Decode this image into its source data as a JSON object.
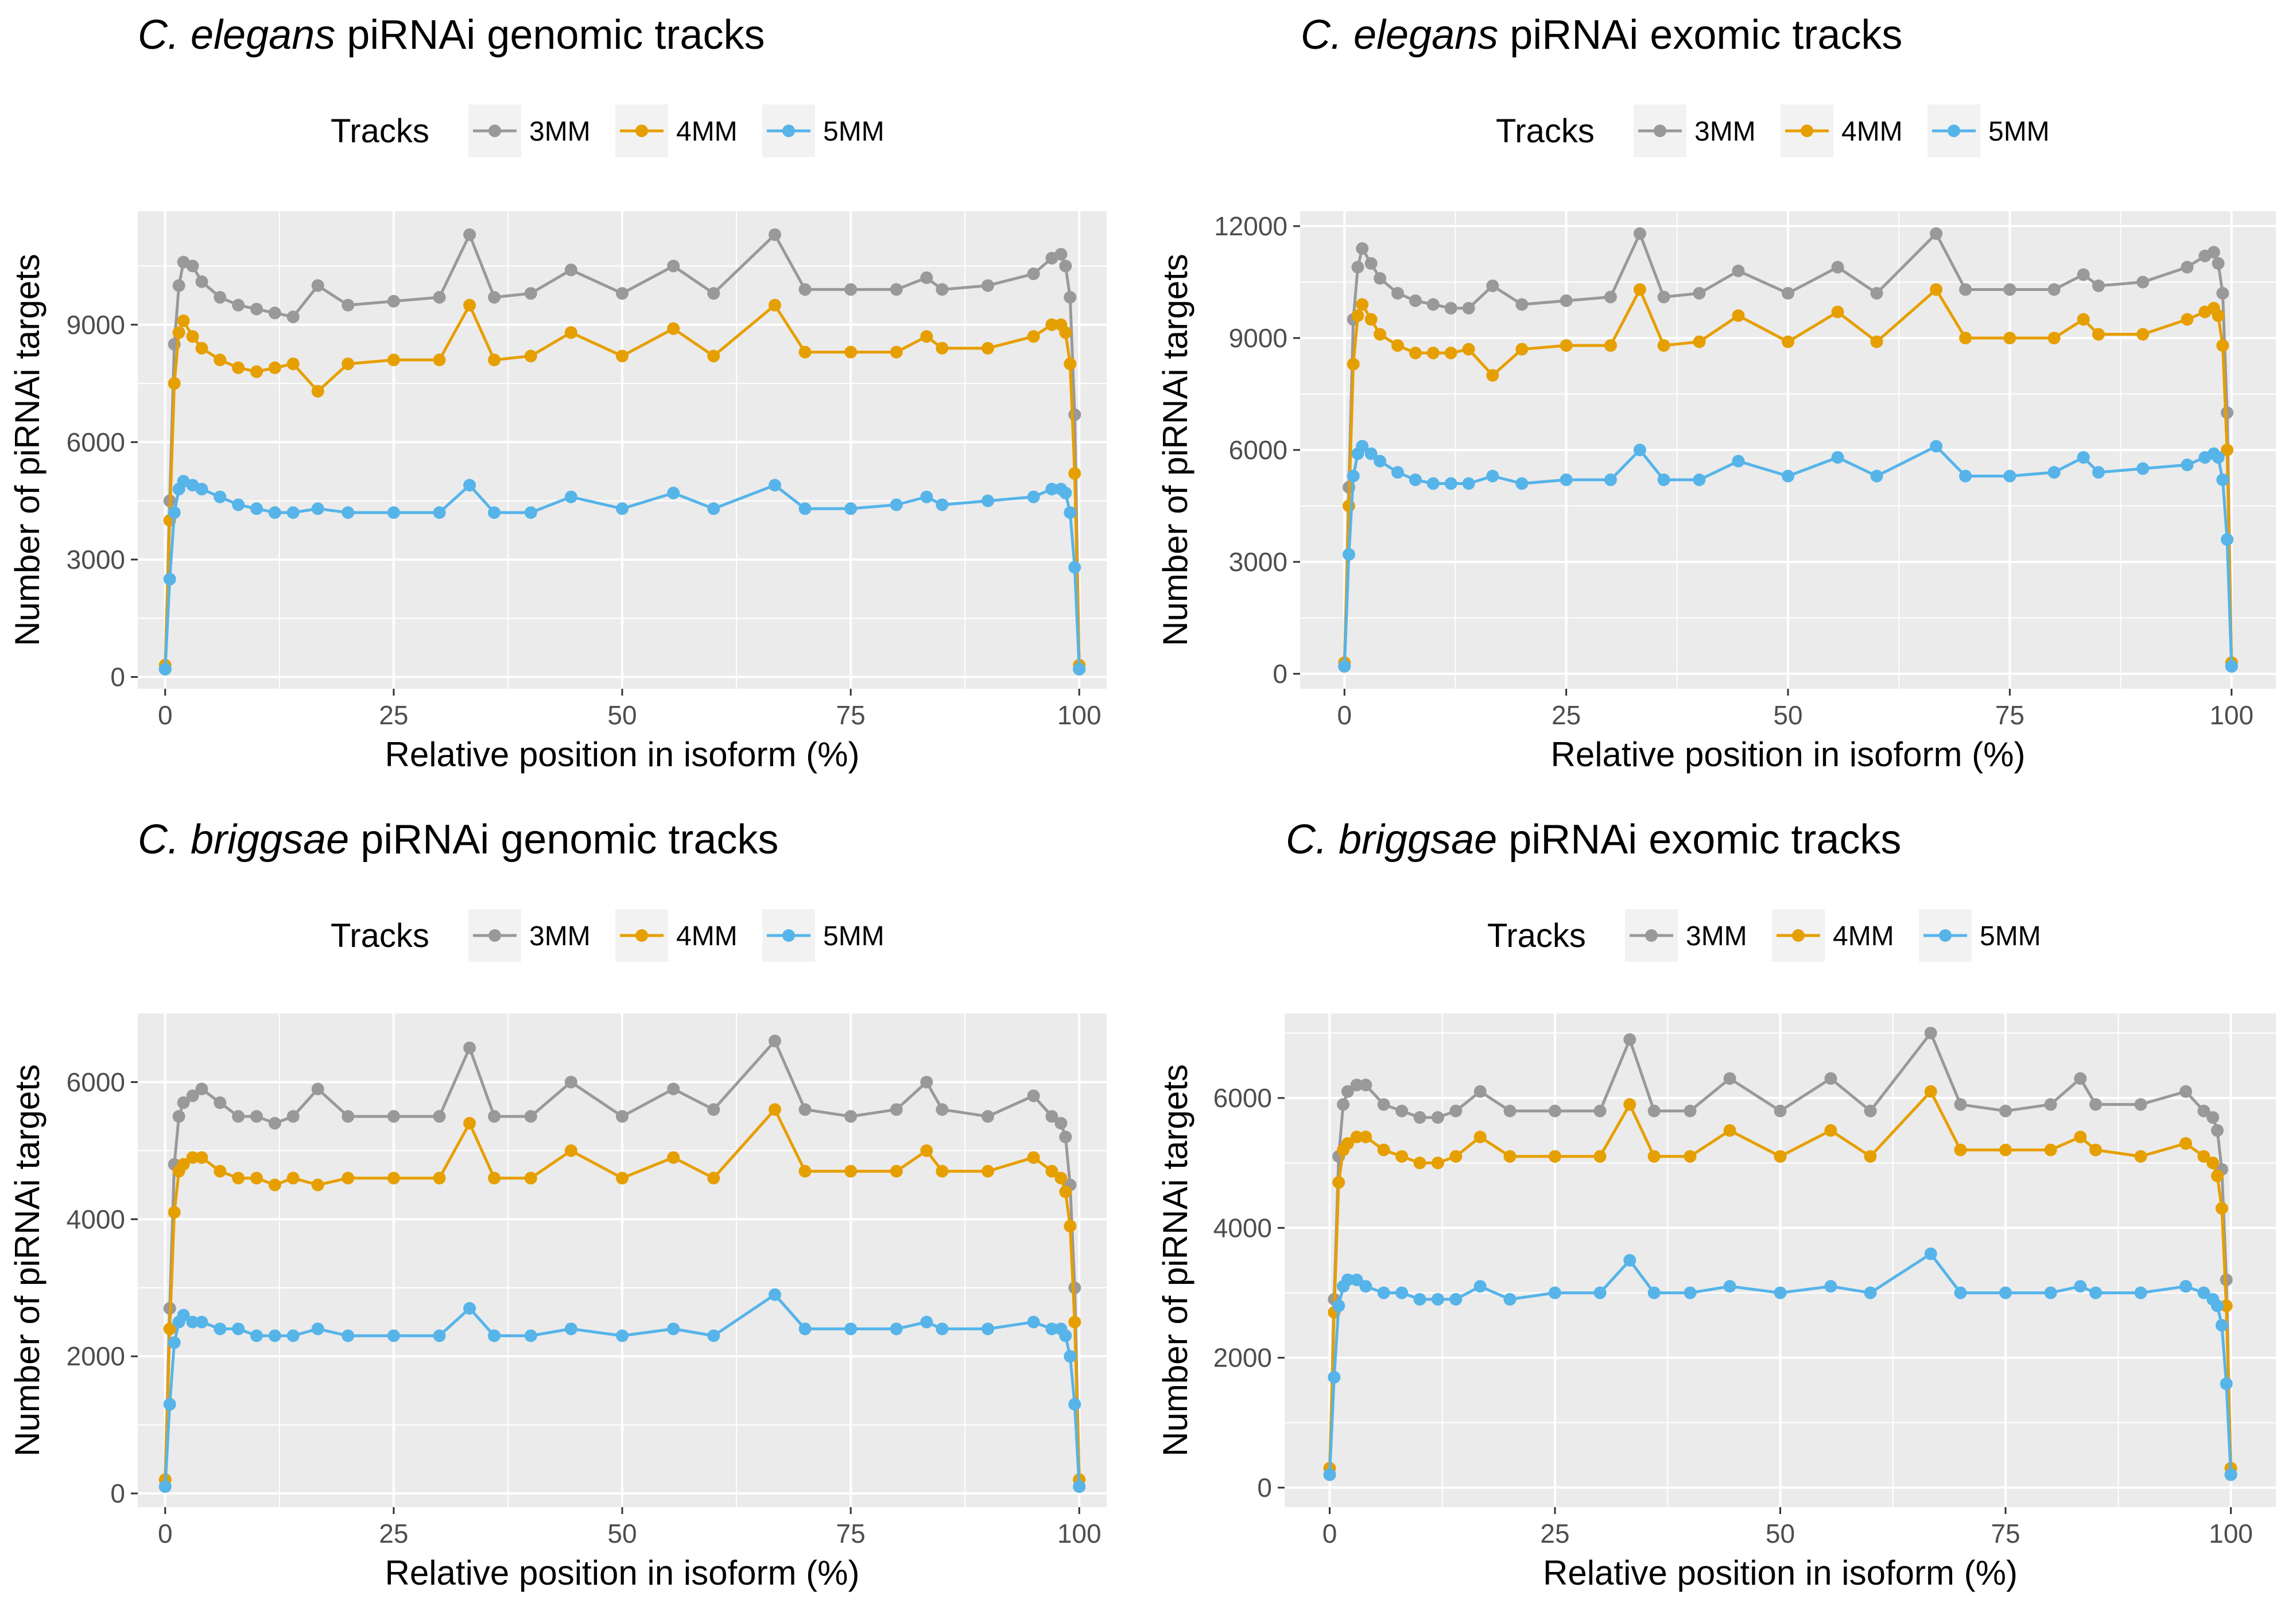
{
  "chart_data": [
    {
      "type": "line",
      "title_species": "C. elegans",
      "title_rest": "piRNAi genomic tracks",
      "legend_title": "Tracks",
      "legend_position": "top",
      "xlabel": "Relative position in isoform (%)",
      "ylabel": "Number of piRNAi targets",
      "xlim": [
        -3,
        103
      ],
      "ylim": [
        -300,
        11900
      ],
      "xticks": [
        0,
        25,
        50,
        75,
        100
      ],
      "yticks": [
        0,
        3000,
        6000,
        9000
      ],
      "ytick_labels": [
        "0",
        "3000",
        "6000",
        "9000"
      ],
      "grid": true,
      "series": [
        {
          "name": "3MM",
          "color": "#999999",
          "x": [
            0,
            0.5,
            1,
            1.5,
            2,
            3,
            4,
            6,
            8,
            10,
            12,
            14,
            16.7,
            20,
            25,
            30,
            33.3,
            36,
            40,
            44.4,
            50,
            55.6,
            60,
            66.7,
            70,
            75,
            80,
            83.3,
            85,
            90,
            95,
            97,
            98,
            98.5,
            99,
            99.5,
            100
          ],
          "y": [
            200,
            4500,
            8500,
            10000,
            10600,
            10500,
            10100,
            9700,
            9500,
            9400,
            9300,
            9200,
            10000,
            9500,
            9600,
            9700,
            11300,
            9700,
            9800,
            10400,
            9800,
            10500,
            9800,
            11300,
            9900,
            9900,
            9900,
            10200,
            9900,
            10000,
            10300,
            10700,
            10800,
            10500,
            9700,
            6700,
            200
          ]
        },
        {
          "name": "4MM",
          "color": "#E69F00",
          "x": [
            0,
            0.5,
            1,
            1.5,
            2,
            3,
            4,
            6,
            8,
            10,
            12,
            14,
            16.7,
            20,
            25,
            30,
            33.3,
            36,
            40,
            44.4,
            50,
            55.6,
            60,
            66.7,
            70,
            75,
            80,
            83.3,
            85,
            90,
            95,
            97,
            98,
            98.5,
            99,
            99.5,
            100
          ],
          "y": [
            300,
            4000,
            7500,
            8800,
            9100,
            8700,
            8400,
            8100,
            7900,
            7800,
            7900,
            8000,
            7300,
            8000,
            8100,
            8100,
            9500,
            8100,
            8200,
            8800,
            8200,
            8900,
            8200,
            9500,
            8300,
            8300,
            8300,
            8700,
            8400,
            8400,
            8700,
            9000,
            9000,
            8800,
            8000,
            5200,
            300
          ]
        },
        {
          "name": "5MM",
          "color": "#56B4E9",
          "x": [
            0,
            0.5,
            1,
            1.5,
            2,
            3,
            4,
            6,
            8,
            10,
            12,
            14,
            16.7,
            20,
            25,
            30,
            33.3,
            36,
            40,
            44.4,
            50,
            55.6,
            60,
            66.7,
            70,
            75,
            80,
            83.3,
            85,
            90,
            95,
            97,
            98,
            98.5,
            99,
            99.5,
            100
          ],
          "y": [
            200,
            2500,
            4200,
            4800,
            5000,
            4900,
            4800,
            4600,
            4400,
            4300,
            4200,
            4200,
            4300,
            4200,
            4200,
            4200,
            4900,
            4200,
            4200,
            4600,
            4300,
            4700,
            4300,
            4900,
            4300,
            4300,
            4400,
            4600,
            4400,
            4500,
            4600,
            4800,
            4800,
            4700,
            4200,
            2800,
            200
          ]
        }
      ]
    },
    {
      "type": "line",
      "title_species": "C. elegans",
      "title_rest": "piRNAi exomic tracks",
      "legend_title": "Tracks",
      "legend_position": "top",
      "xlabel": "Relative position in isoform (%)",
      "ylabel": "Number of piRNAi targets",
      "xlim": [
        -5,
        105
      ],
      "ylim": [
        -400,
        12400
      ],
      "xticks": [
        0,
        25,
        50,
        75,
        100
      ],
      "yticks": [
        0,
        3000,
        6000,
        9000,
        12000
      ],
      "ytick_labels": [
        "0",
        "3000",
        "6000",
        "9000",
        "12000"
      ],
      "grid": true,
      "series": [
        {
          "name": "3MM",
          "color": "#999999",
          "x": [
            0,
            0.5,
            1,
            1.5,
            2,
            3,
            4,
            6,
            8,
            10,
            12,
            14,
            16.7,
            20,
            25,
            30,
            33.3,
            36,
            40,
            44.4,
            50,
            55.6,
            60,
            66.7,
            70,
            75,
            80,
            83.3,
            85,
            90,
            95,
            97,
            98,
            98.5,
            99,
            99.5,
            100
          ],
          "y": [
            200,
            5000,
            9500,
            10900,
            11400,
            11000,
            10600,
            10200,
            10000,
            9900,
            9800,
            9800,
            10400,
            9900,
            10000,
            10100,
            11800,
            10100,
            10200,
            10800,
            10200,
            10900,
            10200,
            11800,
            10300,
            10300,
            10300,
            10700,
            10400,
            10500,
            10900,
            11200,
            11300,
            11000,
            10200,
            7000,
            200
          ]
        },
        {
          "name": "4MM",
          "color": "#E69F00",
          "x": [
            0,
            0.5,
            1,
            1.5,
            2,
            3,
            4,
            6,
            8,
            10,
            12,
            14,
            16.7,
            20,
            25,
            30,
            33.3,
            36,
            40,
            44.4,
            50,
            55.6,
            60,
            66.7,
            70,
            75,
            80,
            83.3,
            85,
            90,
            95,
            97,
            98,
            98.5,
            99,
            99.5,
            100
          ],
          "y": [
            300,
            4500,
            8300,
            9600,
            9900,
            9500,
            9100,
            8800,
            8600,
            8600,
            8600,
            8700,
            8000,
            8700,
            8800,
            8800,
            10300,
            8800,
            8900,
            9600,
            8900,
            9700,
            8900,
            10300,
            9000,
            9000,
            9000,
            9500,
            9100,
            9100,
            9500,
            9700,
            9800,
            9600,
            8800,
            6000,
            300
          ]
        },
        {
          "name": "5MM",
          "color": "#56B4E9",
          "x": [
            0,
            0.5,
            1,
            1.5,
            2,
            3,
            4,
            6,
            8,
            10,
            12,
            14,
            16.7,
            20,
            25,
            30,
            33.3,
            36,
            40,
            44.4,
            50,
            55.6,
            60,
            66.7,
            70,
            75,
            80,
            83.3,
            85,
            90,
            95,
            97,
            98,
            98.5,
            99,
            99.5,
            100
          ],
          "y": [
            200,
            3200,
            5300,
            5900,
            6100,
            5900,
            5700,
            5400,
            5200,
            5100,
            5100,
            5100,
            5300,
            5100,
            5200,
            5200,
            6000,
            5200,
            5200,
            5700,
            5300,
            5800,
            5300,
            6100,
            5300,
            5300,
            5400,
            5800,
            5400,
            5500,
            5600,
            5800,
            5900,
            5800,
            5200,
            3600,
            200
          ]
        }
      ]
    },
    {
      "type": "line",
      "title_species": "C. briggsae",
      "title_rest": "piRNAi genomic tracks",
      "legend_title": "Tracks",
      "legend_position": "top",
      "xlabel": "Relative position in isoform (%)",
      "ylabel": "Number of piRNAi targets",
      "xlim": [
        -3,
        103
      ],
      "ylim": [
        -200,
        7000
      ],
      "xticks": [
        0,
        25,
        50,
        75,
        100
      ],
      "yticks": [
        0,
        2000,
        4000,
        6000
      ],
      "ytick_labels": [
        "0",
        "2000",
        "4000",
        "6000"
      ],
      "grid": true,
      "series": [
        {
          "name": "3MM",
          "color": "#999999",
          "x": [
            0,
            0.5,
            1,
            1.5,
            2,
            3,
            4,
            6,
            8,
            10,
            12,
            14,
            16.7,
            20,
            25,
            30,
            33.3,
            36,
            40,
            44.4,
            50,
            55.6,
            60,
            66.7,
            70,
            75,
            80,
            83.3,
            85,
            90,
            95,
            97,
            98,
            98.5,
            99,
            99.5,
            100
          ],
          "y": [
            200,
            2700,
            4800,
            5500,
            5700,
            5800,
            5900,
            5700,
            5500,
            5500,
            5400,
            5500,
            5900,
            5500,
            5500,
            5500,
            6500,
            5500,
            5500,
            6000,
            5500,
            5900,
            5600,
            6600,
            5600,
            5500,
            5600,
            6000,
            5600,
            5500,
            5800,
            5500,
            5400,
            5200,
            4500,
            3000,
            200
          ]
        },
        {
          "name": "4MM",
          "color": "#E69F00",
          "x": [
            0,
            0.5,
            1,
            1.5,
            2,
            3,
            4,
            6,
            8,
            10,
            12,
            14,
            16.7,
            20,
            25,
            30,
            33.3,
            36,
            40,
            44.4,
            50,
            55.6,
            60,
            66.7,
            70,
            75,
            80,
            83.3,
            85,
            90,
            95,
            97,
            98,
            98.5,
            99,
            99.5,
            100
          ],
          "y": [
            200,
            2400,
            4100,
            4700,
            4800,
            4900,
            4900,
            4700,
            4600,
            4600,
            4500,
            4600,
            4500,
            4600,
            4600,
            4600,
            5400,
            4600,
            4600,
            5000,
            4600,
            4900,
            4600,
            5600,
            4700,
            4700,
            4700,
            5000,
            4700,
            4700,
            4900,
            4700,
            4600,
            4400,
            3900,
            2500,
            200
          ]
        },
        {
          "name": "5MM",
          "color": "#56B4E9",
          "x": [
            0,
            0.5,
            1,
            1.5,
            2,
            3,
            4,
            6,
            8,
            10,
            12,
            14,
            16.7,
            20,
            25,
            30,
            33.3,
            36,
            40,
            44.4,
            50,
            55.6,
            60,
            66.7,
            70,
            75,
            80,
            83.3,
            85,
            90,
            95,
            97,
            98,
            98.5,
            99,
            99.5,
            100
          ],
          "y": [
            100,
            1300,
            2200,
            2500,
            2600,
            2500,
            2500,
            2400,
            2400,
            2300,
            2300,
            2300,
            2400,
            2300,
            2300,
            2300,
            2700,
            2300,
            2300,
            2400,
            2300,
            2400,
            2300,
            2900,
            2400,
            2400,
            2400,
            2500,
            2400,
            2400,
            2500,
            2400,
            2400,
            2300,
            2000,
            1300,
            100
          ]
        }
      ]
    },
    {
      "type": "line",
      "title_species": "C. briggsae",
      "title_rest": "piRNAi exomic tracks",
      "legend_title": "Tracks",
      "legend_position": "top",
      "xlabel": "Relative position in isoform (%)",
      "ylabel": "Number of piRNAi targets",
      "xlim": [
        -5,
        105
      ],
      "ylim": [
        -300,
        7300
      ],
      "xticks": [
        0,
        25,
        50,
        75,
        100
      ],
      "yticks": [
        0,
        2000,
        4000,
        6000
      ],
      "ytick_labels": [
        "0",
        "2000",
        "4000",
        "6000"
      ],
      "grid": true,
      "series": [
        {
          "name": "3MM",
          "color": "#999999",
          "x": [
            0,
            0.5,
            1,
            1.5,
            2,
            3,
            4,
            6,
            8,
            10,
            12,
            14,
            16.7,
            20,
            25,
            30,
            33.3,
            36,
            40,
            44.4,
            50,
            55.6,
            60,
            66.7,
            70,
            75,
            80,
            83.3,
            85,
            90,
            95,
            97,
            98,
            98.5,
            99,
            99.5,
            100
          ],
          "y": [
            200,
            2900,
            5100,
            5900,
            6100,
            6200,
            6200,
            5900,
            5800,
            5700,
            5700,
            5800,
            6100,
            5800,
            5800,
            5800,
            6900,
            5800,
            5800,
            6300,
            5800,
            6300,
            5800,
            7000,
            5900,
            5800,
            5900,
            6300,
            5900,
            5900,
            6100,
            5800,
            5700,
            5500,
            4900,
            3200,
            200
          ]
        },
        {
          "name": "4MM",
          "color": "#E69F00",
          "x": [
            0,
            0.5,
            1,
            1.5,
            2,
            3,
            4,
            6,
            8,
            10,
            12,
            14,
            16.7,
            20,
            25,
            30,
            33.3,
            36,
            40,
            44.4,
            50,
            55.6,
            60,
            66.7,
            70,
            75,
            80,
            83.3,
            85,
            90,
            95,
            97,
            98,
            98.5,
            99,
            99.5,
            100
          ],
          "y": [
            300,
            2700,
            4700,
            5200,
            5300,
            5400,
            5400,
            5200,
            5100,
            5000,
            5000,
            5100,
            5400,
            5100,
            5100,
            5100,
            5900,
            5100,
            5100,
            5500,
            5100,
            5500,
            5100,
            6100,
            5200,
            5200,
            5200,
            5400,
            5200,
            5100,
            5300,
            5100,
            5000,
            4800,
            4300,
            2800,
            300
          ]
        },
        {
          "name": "5MM",
          "color": "#56B4E9",
          "x": [
            0,
            0.5,
            1,
            1.5,
            2,
            3,
            4,
            6,
            8,
            10,
            12,
            14,
            16.7,
            20,
            25,
            30,
            33.3,
            36,
            40,
            44.4,
            50,
            55.6,
            60,
            66.7,
            70,
            75,
            80,
            83.3,
            85,
            90,
            95,
            97,
            98,
            98.5,
            99,
            99.5,
            100
          ],
          "y": [
            200,
            1700,
            2800,
            3100,
            3200,
            3200,
            3100,
            3000,
            3000,
            2900,
            2900,
            2900,
            3100,
            2900,
            3000,
            3000,
            3500,
            3000,
            3000,
            3100,
            3000,
            3100,
            3000,
            3600,
            3000,
            3000,
            3000,
            3100,
            3000,
            3000,
            3100,
            3000,
            2900,
            2800,
            2500,
            1600,
            200
          ]
        }
      ]
    }
  ]
}
